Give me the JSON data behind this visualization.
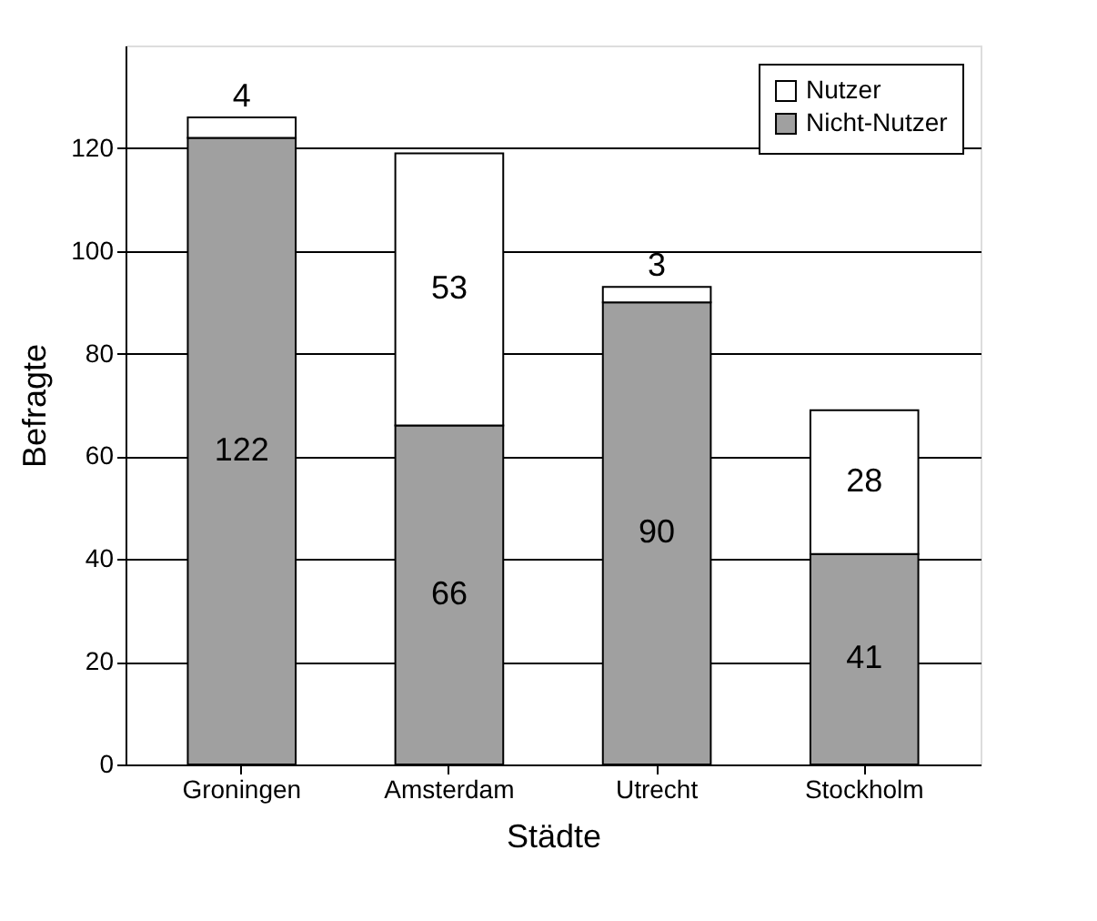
{
  "chart_data": {
    "type": "bar",
    "stacked": true,
    "xlabel": "Städte",
    "ylabel": "Befragte",
    "categories": [
      "Groningen",
      "Amsterdam",
      "Utrecht",
      "Stockholm"
    ],
    "series": [
      {
        "name": "Nicht-Nutzer",
        "color": "#a0a0a0",
        "values": [
          122,
          66,
          90,
          41
        ]
      },
      {
        "name": "Nutzer",
        "color": "#ffffff",
        "values": [
          4,
          53,
          3,
          28
        ]
      }
    ],
    "ylim": [
      0,
      140
    ],
    "yticks": [
      0,
      20,
      40,
      60,
      80,
      100,
      120
    ],
    "grid": "y",
    "legend": "top right",
    "data_labels": true
  }
}
